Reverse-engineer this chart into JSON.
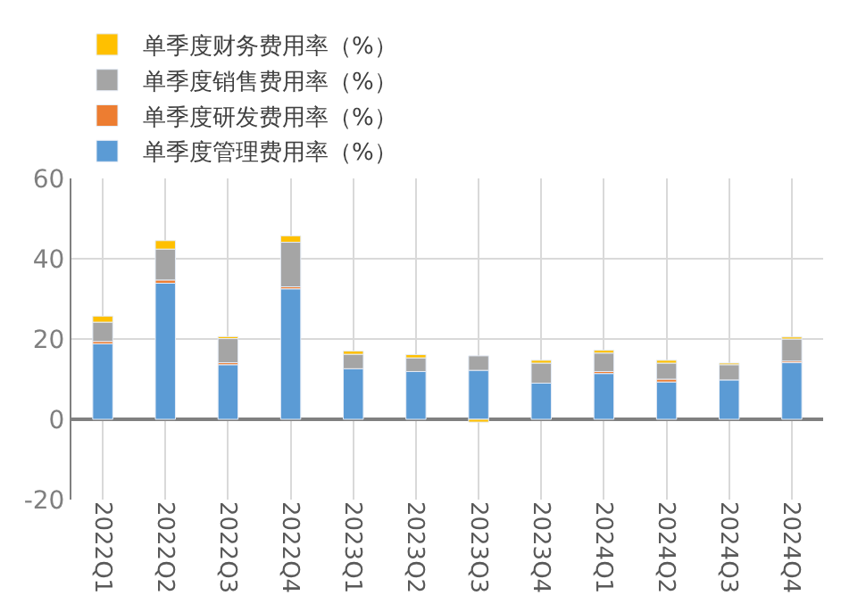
{
  "chart_data": {
    "type": "bar",
    "stacked": true,
    "categories": [
      "2022Q1",
      "2022Q2",
      "2022Q3",
      "2022Q4",
      "2023Q1",
      "2023Q2",
      "2023Q3",
      "2023Q4",
      "2024Q1",
      "2024Q2",
      "2024Q3",
      "2024Q4"
    ],
    "series": [
      {
        "name": "单季度管理费用率（%）",
        "color": "#5b9bd5",
        "values": [
          18.8,
          33.9,
          13.6,
          32.5,
          12.6,
          11.9,
          12.2,
          9.0,
          11.4,
          9.3,
          9.8,
          14.1
        ]
      },
      {
        "name": "单季度研发费用率（%）",
        "color": "#ed7d31",
        "values": [
          0.6,
          0.8,
          0.5,
          0.5,
          null,
          null,
          null,
          null,
          0.5,
          0.7,
          null,
          0.4
        ]
      },
      {
        "name": "单季度销售费用率（%）",
        "color": "#a5a5a5",
        "values": [
          4.8,
          7.7,
          6.0,
          11.1,
          3.6,
          3.4,
          3.6,
          5.0,
          4.6,
          4.0,
          3.8,
          5.5
        ]
      },
      {
        "name": "单季度财务费用率（%）",
        "color": "#ffc000",
        "values": [
          1.5,
          2.1,
          0.5,
          1.6,
          0.8,
          0.8,
          -0.7,
          0.7,
          0.7,
          0.7,
          0.4,
          0.5
        ]
      }
    ],
    "ylim": [
      -20,
      60
    ],
    "yticks": [
      -20,
      0,
      20,
      40,
      60
    ],
    "grid": true,
    "legend": "top"
  }
}
